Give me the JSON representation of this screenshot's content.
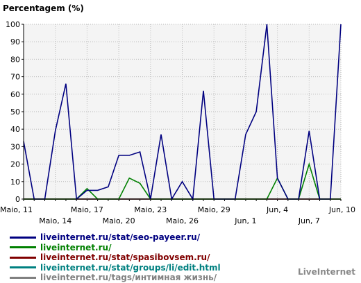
{
  "chart_data": {
    "type": "line",
    "ylabel": "Percentagem (%)",
    "ylim": [
      0,
      100
    ],
    "yticks": [
      0,
      10,
      20,
      30,
      40,
      50,
      60,
      70,
      80,
      90,
      100
    ],
    "grid": true,
    "xtick_labels": [
      {
        "index": 0,
        "label": "Maio, 11",
        "row": 1
      },
      {
        "index": 3,
        "label": "Maio, 14",
        "row": 2
      },
      {
        "index": 6,
        "label": "Maio, 17",
        "row": 1
      },
      {
        "index": 9,
        "label": "Maio, 20",
        "row": 2
      },
      {
        "index": 12,
        "label": "Maio, 23",
        "row": 1
      },
      {
        "index": 15,
        "label": "Maio, 26",
        "row": 2
      },
      {
        "index": 18,
        "label": "Maio, 29",
        "row": 1
      },
      {
        "index": 21,
        "label": "Jun, 1",
        "row": 2
      },
      {
        "index": 24,
        "label": "Jun, 4",
        "row": 1
      },
      {
        "index": 27,
        "label": "Jun, 7",
        "row": 2
      },
      {
        "index": 30,
        "label": "Jun, 10",
        "row": 1
      }
    ],
    "series": [
      {
        "name": "liveinternet.ru/stat/seo-payeer.ru/",
        "color": "#000080",
        "values": [
          33,
          0,
          0,
          39,
          66,
          0,
          5,
          5,
          7,
          25,
          25,
          27,
          0,
          37,
          0,
          10,
          0,
          62,
          0,
          0,
          0,
          37,
          50,
          100,
          12,
          0,
          0,
          39,
          0,
          0,
          100
        ]
      },
      {
        "name": "liveinternet.ru/",
        "color": "#008000",
        "values": [
          0,
          0,
          0,
          0,
          0,
          0,
          6,
          0,
          0,
          0,
          12,
          9,
          0,
          0,
          0,
          0,
          0,
          0,
          0,
          0,
          0,
          0,
          0,
          0,
          12,
          0,
          0,
          20,
          0,
          0,
          0
        ]
      },
      {
        "name": "liveinternet.ru/stat/spasibovsem.ru/",
        "color": "#800000",
        "values": [
          0,
          0,
          0,
          0,
          0,
          0,
          0,
          0,
          0,
          0,
          0,
          0,
          0,
          0,
          0,
          0,
          0,
          0,
          0,
          0,
          0,
          0,
          0,
          0,
          0,
          0,
          0,
          0,
          0,
          0,
          0
        ]
      },
      {
        "name": "liveinternet.ru/stat/groups/li/edit.html",
        "color": "#008080",
        "values": [
          0,
          0,
          0,
          0,
          0,
          0,
          0,
          0,
          0,
          0,
          0,
          0,
          0,
          0,
          0,
          0,
          0,
          0,
          0,
          0,
          0,
          0,
          0,
          0,
          0,
          0,
          0,
          0,
          0,
          0,
          0
        ]
      },
      {
        "name": "liveinternet.ru/tags/интимная жизнь/",
        "color": "#808080",
        "values": [
          0,
          0,
          0,
          0,
          0,
          0,
          0,
          0,
          0,
          0,
          0,
          0,
          0,
          0,
          0,
          0,
          0,
          0,
          0,
          0,
          0,
          0,
          0,
          0,
          0,
          0,
          0,
          0,
          0,
          0,
          0
        ]
      }
    ]
  },
  "brand": "LiveInternet"
}
